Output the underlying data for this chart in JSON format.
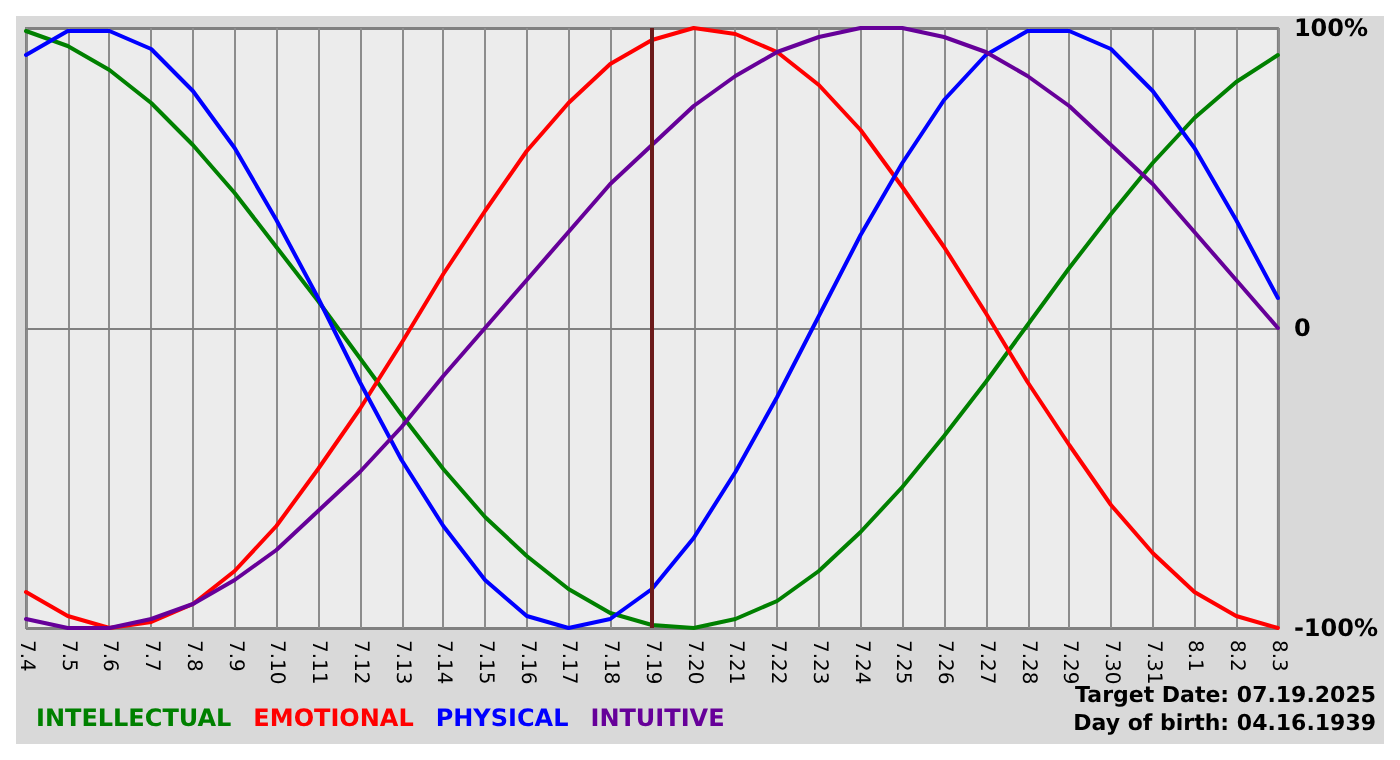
{
  "chart_data": {
    "type": "line",
    "categories": [
      "7.4",
      "7.5",
      "7.6",
      "7.7",
      "7.8",
      "7.9",
      "7.10",
      "7.11",
      "7.12",
      "7.13",
      "7.14",
      "7.15",
      "7.16",
      "7.17",
      "7.18",
      "7.19",
      "7.20",
      "7.21",
      "7.22",
      "7.23",
      "7.24",
      "7.25",
      "7.26",
      "7.27",
      "7.28",
      "7.29",
      "7.30",
      "7.31",
      "8.1",
      "8.2",
      "8.3"
    ],
    "series": [
      {
        "name": "INTELLECTUAL",
        "color": "#008000",
        "values": [
          99,
          94,
          86,
          75,
          61,
          45,
          27,
          9,
          -10,
          -29,
          -47,
          -63,
          -76,
          -87,
          -95,
          -99,
          -100,
          -97,
          -91,
          -81,
          -68,
          -53,
          -36,
          -18,
          1,
          20,
          38,
          55,
          70,
          82,
          91
        ]
      },
      {
        "name": "EMOTIONAL",
        "color": "#ff0000",
        "values": [
          -88,
          -96,
          -100,
          -98,
          -92,
          -81,
          -66,
          -47,
          -27,
          -5,
          18,
          39,
          59,
          75,
          88,
          96,
          100,
          98,
          92,
          81,
          66,
          47,
          27,
          5,
          -18,
          -39,
          -59,
          -75,
          -88,
          -96,
          -100
        ]
      },
      {
        "name": "PHYSICAL",
        "color": "#0000ff",
        "values": [
          91,
          99,
          99,
          93,
          79,
          60,
          36,
          10,
          -18,
          -44,
          -66,
          -84,
          -96,
          -100,
          -97,
          -87,
          -70,
          -48,
          -23,
          4,
          31,
          55,
          76,
          91,
          99,
          99,
          93,
          79,
          60,
          36,
          10
        ]
      },
      {
        "name": "INTUITIVE",
        "color": "#660099",
        "values": [
          -97,
          -100,
          -100,
          -97,
          -92,
          -84,
          -74,
          -61,
          -48,
          -33,
          -16,
          0,
          16,
          32,
          48,
          61,
          74,
          84,
          92,
          97,
          100,
          100,
          97,
          92,
          84,
          74,
          61,
          48,
          32,
          16,
          0
        ]
      }
    ],
    "ylim": [
      -100,
      100
    ],
    "yticks": [
      {
        "value": -100,
        "label": "-100%"
      },
      0,
      {
        "value": 100,
        "label": "100%"
      }
    ],
    "grid": true,
    "legend": "bottom left",
    "marker": "none",
    "line_style": "solid",
    "ref_lines": [
      {
        "axis": "x",
        "value": "7.19",
        "color": "#6b1a1a"
      }
    ],
    "annotations": [
      "Target Date: 07.19.2025",
      "Day of birth: 04.16.1939"
    ]
  }
}
